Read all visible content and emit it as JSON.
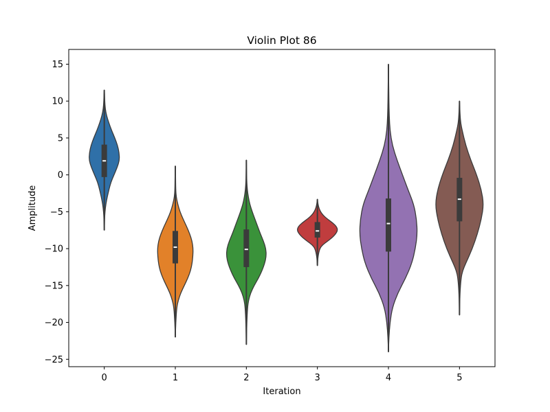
{
  "chart_data": {
    "type": "violin",
    "title": "Violin Plot 86",
    "xlabel": "Iteration",
    "ylabel": "Amplitude",
    "categories": [
      "0",
      "1",
      "2",
      "3",
      "4",
      "5"
    ],
    "ylim": [
      -26,
      17
    ],
    "yticks": [
      {
        "value": 15,
        "label": "15"
      },
      {
        "value": 10,
        "label": "10"
      },
      {
        "value": 5,
        "label": "5"
      },
      {
        "value": 0,
        "label": "0"
      },
      {
        "value": -5,
        "label": "−5"
      },
      {
        "value": -10,
        "label": "−10"
      },
      {
        "value": -15,
        "label": "−15"
      },
      {
        "value": -20,
        "label": "−20"
      },
      {
        "value": -25,
        "label": "−25"
      }
    ],
    "grid": false,
    "series": [
      {
        "category": "0",
        "color": "#2f70a8",
        "min": -7.5,
        "max": 11.5,
        "q1": -0.3,
        "median": 1.9,
        "q3": 4.1,
        "profile": [
          [
            -7.5,
            0
          ],
          [
            -6,
            0.4
          ],
          [
            -5,
            0.9
          ],
          [
            -4,
            2.0
          ],
          [
            -3,
            3.8
          ],
          [
            -2,
            6.0
          ],
          [
            -1,
            8.5
          ],
          [
            0,
            12.5
          ],
          [
            1,
            16.5
          ],
          [
            2,
            19.5
          ],
          [
            3,
            19.0
          ],
          [
            4,
            17.0
          ],
          [
            5,
            13.5
          ],
          [
            6,
            9.5
          ],
          [
            7,
            6.0
          ],
          [
            8,
            3.0
          ],
          [
            9,
            1.2
          ],
          [
            10,
            0.6
          ],
          [
            11,
            0.3
          ],
          [
            11.5,
            0
          ]
        ]
      },
      {
        "category": "1",
        "color": "#e28129",
        "min": -22,
        "max": 1.2,
        "q1": -12,
        "median": -9.8,
        "q3": -7.6,
        "profile": [
          [
            -22,
            0
          ],
          [
            -20,
            0.6
          ],
          [
            -18,
            1.8
          ],
          [
            -17,
            3.8
          ],
          [
            -16,
            7.0
          ],
          [
            -15,
            11.5
          ],
          [
            -14,
            16.0
          ],
          [
            -13,
            19.5
          ],
          [
            -12,
            21.5
          ],
          [
            -11,
            22.5
          ],
          [
            -10,
            22.8
          ],
          [
            -9,
            21.5
          ],
          [
            -8,
            18.5
          ],
          [
            -7,
            14.5
          ],
          [
            -6,
            10.0
          ],
          [
            -5,
            6.0
          ],
          [
            -4,
            3.2
          ],
          [
            -3,
            1.2
          ],
          [
            -2,
            0.5
          ],
          [
            0,
            0.3
          ],
          [
            1.2,
            0
          ]
        ]
      },
      {
        "category": "2",
        "color": "#3a923a",
        "min": -23,
        "max": 2.0,
        "q1": -12.5,
        "median": -10.1,
        "q3": -7.4,
        "profile": [
          [
            -23,
            0
          ],
          [
            -20,
            0.6
          ],
          [
            -18,
            1.5
          ],
          [
            -17,
            2.8
          ],
          [
            -16,
            5.5
          ],
          [
            -15,
            10.0
          ],
          [
            -14,
            15.5
          ],
          [
            -13,
            20.0
          ],
          [
            -12,
            23.5
          ],
          [
            -11,
            25.5
          ],
          [
            -10,
            25.0
          ],
          [
            -9,
            22.0
          ],
          [
            -8,
            18.0
          ],
          [
            -7,
            14.5
          ],
          [
            -6,
            11.0
          ],
          [
            -5,
            7.5
          ],
          [
            -4,
            4.5
          ],
          [
            -3,
            2.5
          ],
          [
            -2,
            1.2
          ],
          [
            -1,
            0.6
          ],
          [
            0,
            0.3
          ],
          [
            2.0,
            0
          ]
        ]
      },
      {
        "category": "3",
        "color": "#c03d3e",
        "min": -12.3,
        "max": -3.3,
        "q1": -8.5,
        "median": -7.6,
        "q3": -6.4,
        "profile": [
          [
            -12.3,
            0
          ],
          [
            -11,
            0.8
          ],
          [
            -10,
            3.0
          ],
          [
            -9.5,
            6.5
          ],
          [
            -9,
            13.0
          ],
          [
            -8.5,
            19.0
          ],
          [
            -8,
            23.5
          ],
          [
            -7.5,
            26.0
          ],
          [
            -7,
            24.5
          ],
          [
            -6.5,
            19.5
          ],
          [
            -6,
            13.0
          ],
          [
            -5.5,
            7.5
          ],
          [
            -5,
            4.0
          ],
          [
            -4.5,
            2.0
          ],
          [
            -4,
            0.8
          ],
          [
            -3.3,
            0
          ]
        ]
      },
      {
        "category": "4",
        "color": "#9372b2",
        "min": -24,
        "max": 15,
        "q1": -10.4,
        "median": -6.6,
        "q3": -3.2,
        "profile": [
          [
            -24,
            0
          ],
          [
            -22,
            0.6
          ],
          [
            -20,
            2.0
          ],
          [
            -18,
            5.0
          ],
          [
            -16,
            12.0
          ],
          [
            -14,
            22.0
          ],
          [
            -12,
            30.0
          ],
          [
            -10,
            34.5
          ],
          [
            -8,
            37.0
          ],
          [
            -6,
            36.0
          ],
          [
            -4,
            32.5
          ],
          [
            -2,
            25.0
          ],
          [
            0,
            18.0
          ],
          [
            2,
            11.0
          ],
          [
            4,
            5.0
          ],
          [
            6,
            2.0
          ],
          [
            8,
            1.0
          ],
          [
            10,
            0.6
          ],
          [
            12,
            0.4
          ],
          [
            15,
            0
          ]
        ]
      },
      {
        "category": "5",
        "color": "#845b53",
        "min": -19,
        "max": 10,
        "q1": -6.3,
        "median": -3.3,
        "q3": -0.4,
        "profile": [
          [
            -19,
            0
          ],
          [
            -16,
            0.6
          ],
          [
            -14,
            2.0
          ],
          [
            -13,
            4.0
          ],
          [
            -12,
            8.0
          ],
          [
            -10,
            16.5
          ],
          [
            -8,
            23.0
          ],
          [
            -6,
            28.0
          ],
          [
            -4,
            31.0
          ],
          [
            -2,
            28.0
          ],
          [
            0,
            22.0
          ],
          [
            2,
            14.5
          ],
          [
            4,
            8.0
          ],
          [
            6,
            3.5
          ],
          [
            7,
            1.6
          ],
          [
            8,
            0.8
          ],
          [
            10,
            0
          ]
        ]
      }
    ]
  }
}
